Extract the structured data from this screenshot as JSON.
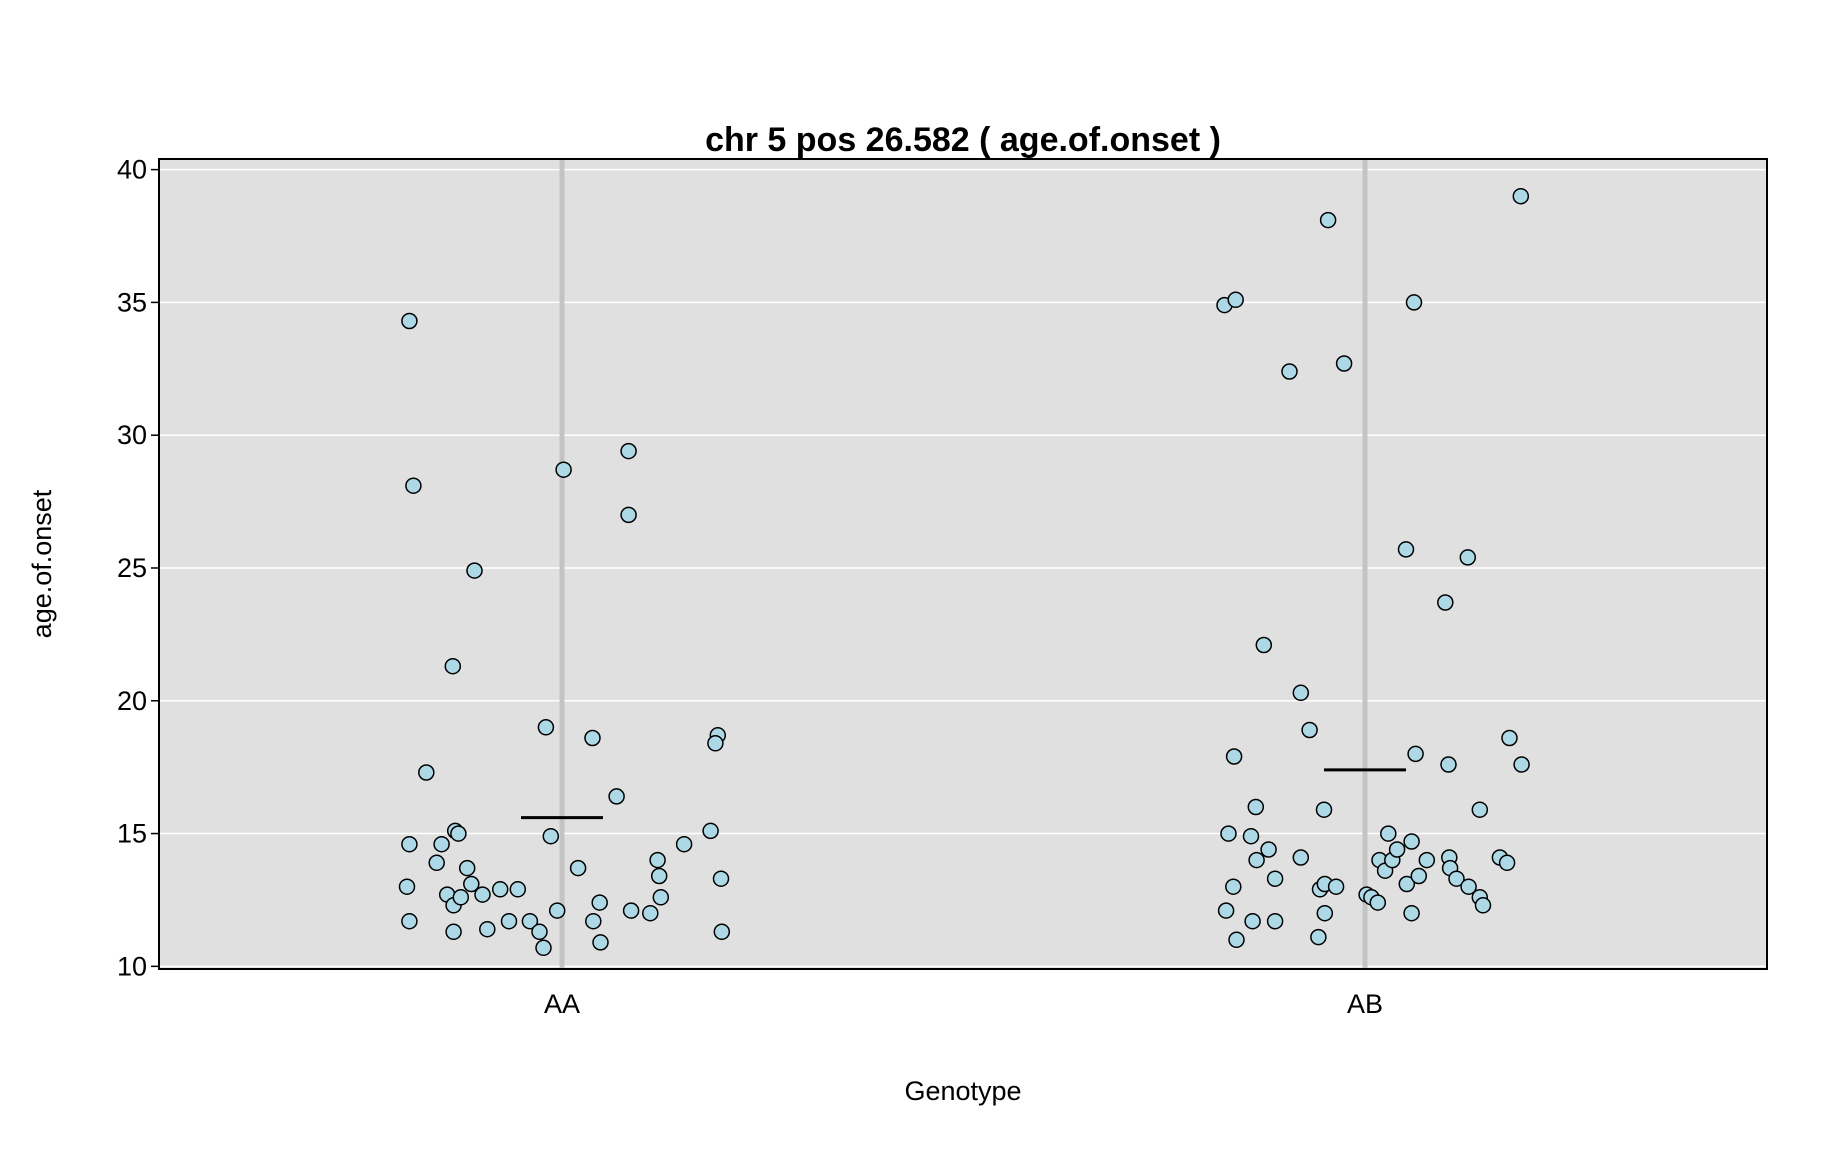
{
  "chart_data": {
    "type": "scatter",
    "title": "chr 5 pos 26.582 ( age.of.onset )",
    "xlabel": "Genotype",
    "ylabel": "age.of.onset",
    "categories": [
      "AA",
      "AB"
    ],
    "ylim": [
      9.9,
      40.4
    ],
    "yticks": [
      10,
      15,
      20,
      25,
      30,
      35,
      40
    ],
    "grid": true,
    "colors": {
      "panel_background": "#e0e0e0",
      "grid": "#ffffff",
      "category_line": "#c4c4c4",
      "point_fill": "#add8e6",
      "point_stroke": "#000000",
      "mean_line": "#000000"
    },
    "means": [
      15.6,
      17.4
    ],
    "series": [
      {
        "category": "AA",
        "points": [
          [
            -0.19,
            34.3
          ],
          [
            -0.185,
            28.1
          ],
          [
            -0.109,
            24.9
          ],
          [
            -0.136,
            21.3
          ],
          [
            -0.169,
            17.3
          ],
          [
            -0.19,
            14.6
          ],
          [
            -0.15,
            14.6
          ],
          [
            -0.133,
            15.1
          ],
          [
            -0.129,
            15.0
          ],
          [
            -0.156,
            13.9
          ],
          [
            -0.118,
            13.7
          ],
          [
            -0.193,
            13.0
          ],
          [
            -0.113,
            13.1
          ],
          [
            -0.143,
            12.7
          ],
          [
            -0.135,
            12.3
          ],
          [
            -0.126,
            12.6
          ],
          [
            -0.099,
            12.7
          ],
          [
            -0.077,
            12.9
          ],
          [
            -0.055,
            12.9
          ],
          [
            -0.19,
            11.7
          ],
          [
            -0.135,
            11.3
          ],
          [
            -0.093,
            11.4
          ],
          [
            -0.066,
            11.7
          ],
          [
            -0.04,
            11.7
          ],
          [
            -0.028,
            11.3
          ],
          [
            -0.023,
            10.7
          ],
          [
            -0.02,
            19.0
          ],
          [
            -0.014,
            14.9
          ],
          [
            -0.006,
            12.1
          ],
          [
            0.002,
            28.7
          ],
          [
            0.02,
            13.7
          ],
          [
            0.038,
            18.6
          ],
          [
            0.039,
            11.7
          ],
          [
            0.047,
            12.4
          ],
          [
            0.048,
            10.9
          ],
          [
            0.068,
            16.4
          ],
          [
            0.083,
            29.4
          ],
          [
            0.083,
            27.0
          ],
          [
            0.086,
            12.1
          ],
          [
            0.11,
            12.0
          ],
          [
            0.119,
            14.0
          ],
          [
            0.121,
            13.4
          ],
          [
            0.123,
            12.6
          ],
          [
            0.152,
            14.6
          ],
          [
            0.185,
            15.1
          ],
          [
            0.194,
            18.7
          ],
          [
            0.191,
            18.4
          ],
          [
            0.198,
            13.3
          ],
          [
            0.199,
            11.3
          ]
        ]
      },
      {
        "category": "AB",
        "points": [
          [
            -0.175,
            34.9
          ],
          [
            -0.161,
            35.1
          ],
          [
            -0.17,
            15.0
          ],
          [
            -0.163,
            17.9
          ],
          [
            -0.173,
            12.1
          ],
          [
            -0.164,
            13.0
          ],
          [
            -0.16,
            11.0
          ],
          [
            -0.14,
            11.7
          ],
          [
            -0.142,
            14.9
          ],
          [
            -0.136,
            16.0
          ],
          [
            -0.135,
            14.0
          ],
          [
            -0.126,
            22.1
          ],
          [
            -0.12,
            14.4
          ],
          [
            -0.112,
            13.3
          ],
          [
            -0.112,
            11.7
          ],
          [
            -0.094,
            32.4
          ],
          [
            -0.08,
            20.3
          ],
          [
            -0.08,
            14.1
          ],
          [
            -0.069,
            18.9
          ],
          [
            -0.058,
            11.1
          ],
          [
            -0.056,
            12.9
          ],
          [
            -0.051,
            15.9
          ],
          [
            -0.05,
            13.1
          ],
          [
            -0.05,
            12.0
          ],
          [
            -0.046,
            38.1
          ],
          [
            -0.036,
            13.0
          ],
          [
            -0.026,
            32.7
          ],
          [
            0.002,
            12.7
          ],
          [
            0.008,
            12.6
          ],
          [
            0.016,
            12.4
          ],
          [
            0.018,
            14.0
          ],
          [
            0.025,
            13.6
          ],
          [
            0.029,
            15.0
          ],
          [
            0.034,
            14.0
          ],
          [
            0.04,
            14.4
          ],
          [
            0.051,
            25.7
          ],
          [
            0.052,
            13.1
          ],
          [
            0.058,
            14.7
          ],
          [
            0.058,
            12.0
          ],
          [
            0.061,
            35.0
          ],
          [
            0.063,
            18.0
          ],
          [
            0.067,
            13.4
          ],
          [
            0.077,
            14.0
          ],
          [
            0.1,
            23.7
          ],
          [
            0.104,
            17.6
          ],
          [
            0.105,
            14.1
          ],
          [
            0.106,
            13.7
          ],
          [
            0.114,
            13.3
          ],
          [
            0.128,
            25.4
          ],
          [
            0.129,
            13.0
          ],
          [
            0.143,
            12.6
          ],
          [
            0.143,
            15.9
          ],
          [
            0.147,
            12.3
          ],
          [
            0.168,
            14.1
          ],
          [
            0.18,
            18.6
          ],
          [
            0.177,
            13.9
          ],
          [
            0.194,
            39.0
          ],
          [
            0.195,
            17.6
          ]
        ]
      }
    ]
  }
}
